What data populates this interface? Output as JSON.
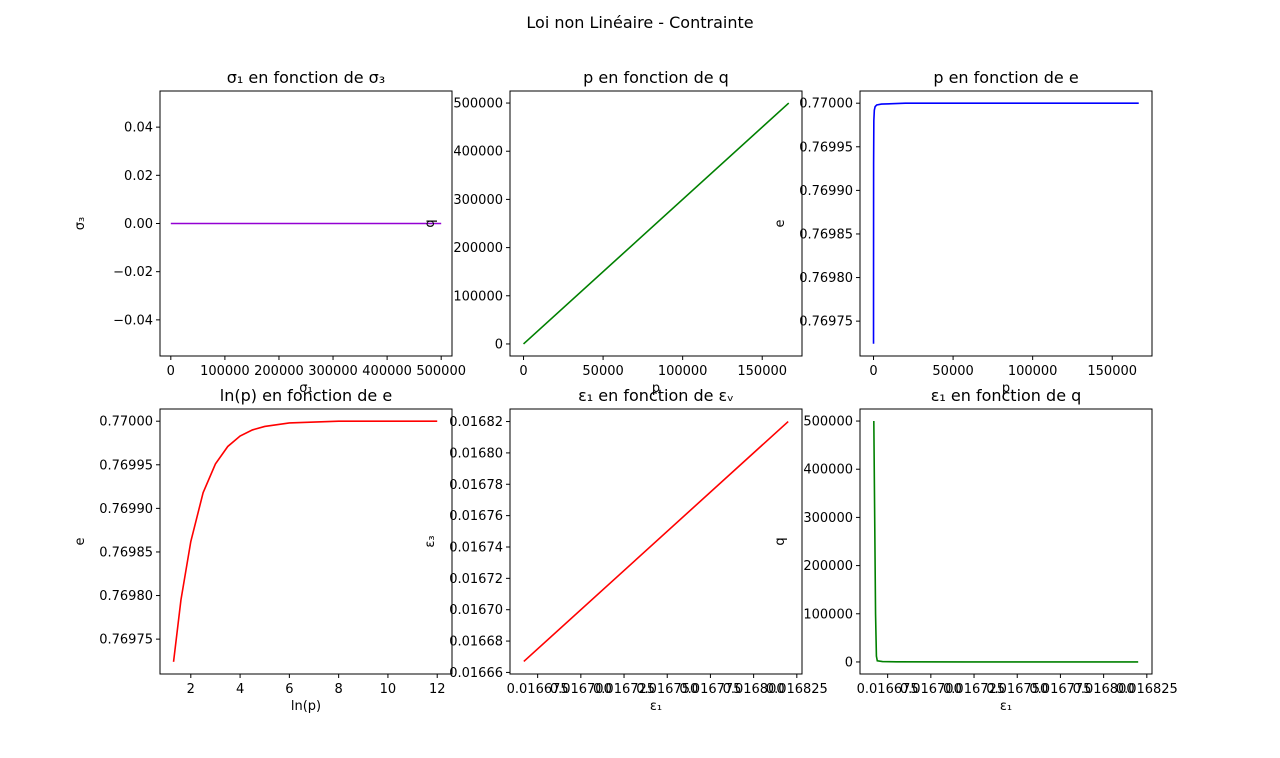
{
  "figure": {
    "title": "Loi non Linéaire - Contrainte"
  },
  "chart_data": [
    {
      "type": "line",
      "title": "σ₁ en fonction de σ₃",
      "xlabel": "σ₁",
      "ylabel": "σ₃",
      "xlim": [
        -20000,
        520000
      ],
      "ylim": [
        -0.055,
        0.055
      ],
      "xticks": [
        0,
        100000,
        200000,
        300000,
        400000,
        500000
      ],
      "xtick_labels": [
        "0",
        "100000",
        "200000",
        "300000",
        "400000",
        "500000"
      ],
      "yticks": [
        -0.04,
        -0.02,
        0.0,
        0.02,
        0.04
      ],
      "ytick_labels": [
        "−0.04",
        "−0.02",
        "0.00",
        "0.02",
        "0.04"
      ],
      "series": [
        {
          "color": "#9400d3",
          "x": [
            0,
            500000
          ],
          "y": [
            0,
            0
          ]
        }
      ]
    },
    {
      "type": "line",
      "title": "p en fonction de q",
      "xlabel": "p",
      "ylabel": "q",
      "xlim": [
        -8500,
        175000
      ],
      "ylim": [
        -25000,
        525000
      ],
      "xticks": [
        0,
        50000,
        100000,
        150000
      ],
      "xtick_labels": [
        "0",
        "50000",
        "100000",
        "150000"
      ],
      "yticks": [
        0,
        100000,
        200000,
        300000,
        400000,
        500000
      ],
      "ytick_labels": [
        "0",
        "100000",
        "200000",
        "300000",
        "400000",
        "500000"
      ],
      "series": [
        {
          "color": "#008000",
          "x": [
            0,
            166667
          ],
          "y": [
            0,
            500000
          ]
        }
      ]
    },
    {
      "type": "line",
      "title": "p en fonction de e",
      "xlabel": "p",
      "ylabel": "e",
      "xlim": [
        -8500,
        175000
      ],
      "ylim": [
        0.76971,
        0.770014
      ],
      "xticks": [
        0,
        50000,
        100000,
        150000
      ],
      "xtick_labels": [
        "0",
        "50000",
        "100000",
        "150000"
      ],
      "yticks": [
        0.76975,
        0.7698,
        0.76985,
        0.7699,
        0.76995,
        0.77
      ],
      "ytick_labels": [
        "0.76975",
        "0.76980",
        "0.76985",
        "0.76990",
        "0.76995",
        "0.77000"
      ],
      "series": [
        {
          "color": "#0000ff",
          "x": [
            3.7,
            10,
            50,
            200,
            500,
            1000,
            2000,
            5000,
            20000,
            50000,
            100000,
            166667
          ],
          "y": [
            0.769724,
            0.7698,
            0.76993,
            0.76998,
            0.769992,
            0.769996,
            0.769998,
            0.769999,
            0.77,
            0.77,
            0.77,
            0.77
          ]
        }
      ]
    },
    {
      "type": "line",
      "title": "ln(p) en fonction de e",
      "xlabel": "ln(p)",
      "ylabel": "e",
      "xlim": [
        0.75,
        12.6
      ],
      "ylim": [
        0.76971,
        0.770014
      ],
      "xticks": [
        2,
        4,
        6,
        8,
        10,
        12
      ],
      "xtick_labels": [
        "2",
        "4",
        "6",
        "8",
        "10",
        "12"
      ],
      "yticks": [
        0.76975,
        0.7698,
        0.76985,
        0.7699,
        0.76995,
        0.77
      ],
      "ytick_labels": [
        "0.76975",
        "0.76980",
        "0.76985",
        "0.76990",
        "0.76995",
        "0.77000"
      ],
      "series": [
        {
          "color": "#ff0000",
          "x": [
            1.3,
            1.6,
            2.0,
            2.5,
            3.0,
            3.5,
            4.0,
            4.5,
            5.0,
            6.0,
            7.0,
            8.0,
            9.0,
            10.0,
            11.0,
            12.0
          ],
          "y": [
            0.769724,
            0.769795,
            0.769862,
            0.769918,
            0.769951,
            0.769971,
            0.769983,
            0.76999,
            0.769994,
            0.769998,
            0.769999,
            0.77,
            0.77,
            0.77,
            0.77,
            0.77
          ]
        }
      ]
    },
    {
      "type": "line",
      "title": "ε₁ en fonction de εᵥ",
      "xlabel": "ε₁",
      "ylabel": "ε₃",
      "xlim": [
        0.016659,
        0.016828
      ],
      "ylim": [
        0.016659,
        0.016828
      ],
      "xticks": [
        0.016675,
        0.0167,
        0.016725,
        0.01675,
        0.016775,
        0.0168,
        0.016825
      ],
      "xtick_labels": [
        "0.016675",
        "0.016700",
        "0.016725",
        "0.016750",
        "0.016775",
        "0.016800",
        "0.016825"
      ],
      "yticks": [
        0.01666,
        0.01668,
        0.0167,
        0.01672,
        0.01674,
        0.01676,
        0.01678,
        0.0168,
        0.01682
      ],
      "ytick_labels": [
        "0.01666",
        "0.01668",
        "0.01670",
        "0.01672",
        "0.01674",
        "0.01676",
        "0.01678",
        "0.01680",
        "0.01682"
      ],
      "series": [
        {
          "color": "#ff0000",
          "x": [
            0.016667,
            0.01682
          ],
          "y": [
            0.016667,
            0.01682
          ]
        }
      ]
    },
    {
      "type": "line",
      "title": "ε₁ en fonction de q",
      "xlabel": "ε₁",
      "ylabel": "q",
      "xlim": [
        0.016659,
        0.016828
      ],
      "ylim": [
        -25000,
        525000
      ],
      "xticks": [
        0.016675,
        0.0167,
        0.016725,
        0.01675,
        0.016775,
        0.0168,
        0.016825
      ],
      "xtick_labels": [
        "0.016675",
        "0.016700",
        "0.016725",
        "0.016750",
        "0.016775",
        "0.016800",
        "0.016825"
      ],
      "yticks": [
        0,
        100000,
        200000,
        300000,
        400000,
        500000
      ],
      "ytick_labels": [
        "0",
        "100000",
        "200000",
        "300000",
        "400000",
        "500000"
      ],
      "series": [
        {
          "color": "#008000",
          "x": [
            0.016667,
            0.0166675,
            0.016668,
            0.0166685,
            0.016669,
            0.016672,
            0.01668,
            0.01672,
            0.01682
          ],
          "y": [
            500000,
            300000,
            100000,
            12000,
            2500,
            800,
            300,
            100,
            0
          ]
        }
      ]
    }
  ]
}
